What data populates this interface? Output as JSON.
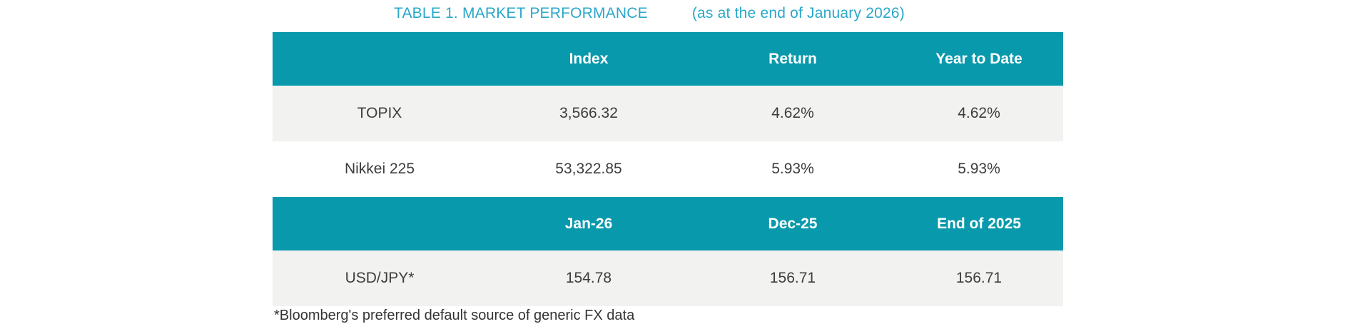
{
  "title": {
    "main": "TABLE 1. MARKET PERFORMANCE",
    "subtitle": "(as at the end of January 2026)"
  },
  "colors": {
    "header_bg": "#0899AC",
    "title_text": "#2BA7C9",
    "alt_row_bg": "#F2F2F0",
    "body_text": "#3D3D3D"
  },
  "index_table": {
    "headers": [
      "",
      "Index",
      "Return",
      "Year to Date"
    ],
    "rows": [
      {
        "label": "TOPIX",
        "index": "3,566.32",
        "return": "4.62%",
        "ytd": "4.62%"
      },
      {
        "label": "Nikkei 225",
        "index": "53,322.85",
        "return": "5.93%",
        "ytd": "5.93%"
      }
    ]
  },
  "fx_table": {
    "headers": [
      "",
      "Jan-26",
      "Dec-25",
      "End of 2025"
    ],
    "rows": [
      {
        "label": "USD/JPY*",
        "jan26": "154.78",
        "dec25": "156.71",
        "end2025": "156.71"
      }
    ]
  },
  "footnote": "*Bloomberg's preferred default source of generic FX data"
}
